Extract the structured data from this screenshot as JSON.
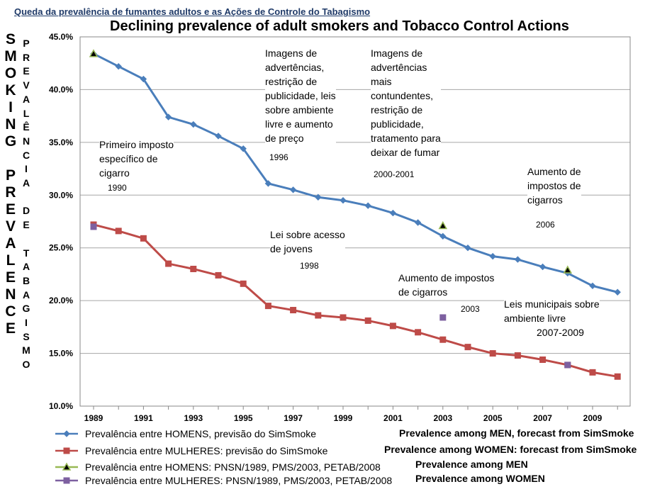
{
  "header": {
    "top_title": "Queda da prevalência de fumantes adultos e as Ações de Controle do Tabagismo",
    "main_title": "Declining prevalence of adult smokers and Tobacco Control Actions"
  },
  "side_labels": {
    "smoking_prevalence": [
      "S",
      "M",
      "O",
      "K",
      "I",
      "N",
      "G",
      "",
      "P",
      "R",
      "E",
      "V",
      "A",
      "L",
      "E",
      "N",
      "C",
      "E"
    ],
    "prevalencia_de_tabagismo": [
      "P",
      "R",
      "E",
      "V",
      "A",
      "L",
      "Ê",
      "N",
      "C",
      "I",
      "A",
      "",
      "D",
      "E",
      "",
      "T",
      "A",
      "B",
      "A",
      "G",
      "I",
      "S",
      "M",
      "O"
    ]
  },
  "chart_data": {
    "type": "line",
    "x_ticks": [
      "1989",
      "1991",
      "1993",
      "1995",
      "1997",
      "1999",
      "2001",
      "2003",
      "2005",
      "2007",
      "2009"
    ],
    "y_ticks": [
      "10.0%",
      "15.0%",
      "20.0%",
      "25.0%",
      "30.0%",
      "35.0%",
      "40.0%",
      "45.0%"
    ],
    "xlim": [
      1989,
      2010
    ],
    "ylim": [
      10,
      45
    ],
    "grid": true,
    "legend_position": "bottom",
    "series": [
      {
        "name": "Prevalência entre HOMENS, previsão do SimSmoke",
        "color": "#4a7ebb",
        "marker": "diamond",
        "x": [
          1989,
          1990,
          1991,
          1992,
          1993,
          1994,
          1995,
          1996,
          1997,
          1998,
          1999,
          2000,
          2001,
          2002,
          2003,
          2004,
          2005,
          2006,
          2007,
          2008,
          2009,
          2010
        ],
        "values": [
          43.4,
          42.2,
          41.0,
          37.4,
          36.7,
          35.6,
          34.4,
          31.1,
          30.5,
          29.8,
          29.5,
          29.0,
          28.3,
          27.4,
          26.1,
          25.0,
          24.2,
          23.9,
          23.2,
          22.6,
          21.4,
          20.8
        ]
      },
      {
        "name": "Prevalência entre MULHERES: previsão do SimSmoke",
        "color": "#be4b48",
        "marker": "square",
        "x": [
          1989,
          1990,
          1991,
          1992,
          1993,
          1994,
          1995,
          1996,
          1997,
          1998,
          1999,
          2000,
          2001,
          2002,
          2003,
          2004,
          2005,
          2006,
          2007,
          2008,
          2009,
          2010
        ],
        "values": [
          27.2,
          26.6,
          25.9,
          23.5,
          23.0,
          22.4,
          21.6,
          19.5,
          19.1,
          18.6,
          18.4,
          18.1,
          17.6,
          17.0,
          16.3,
          15.6,
          15.0,
          14.8,
          14.4,
          13.9,
          13.2,
          12.8
        ]
      },
      {
        "name": "Prevalência entre HOMENS: PNSN/1989, PMS/2003, PETAB/2008",
        "color": "#98b954",
        "marker": "triangle",
        "x": [
          1989,
          2003,
          2008
        ],
        "values": [
          43.4,
          27.1,
          22.9
        ]
      },
      {
        "name": "Prevalência entre MULHERES: PNSN/1989, PMS/2003, PETAB/2008",
        "color": "#7d60a0",
        "marker": "square",
        "x": [
          1989,
          2003,
          2008
        ],
        "values": [
          27.0,
          18.4,
          13.9
        ]
      }
    ],
    "legend_english": [
      "Prevalence among MEN, forecast from SimSmoke",
      "Prevalence among WOMEN: forecast from SimSmoke",
      "Prevalence among MEN",
      "Prevalence among WOMEN"
    ],
    "annotations": [
      {
        "text": "Primeiro imposto\nespecífico de\ncigarro",
        "year": "1990"
      },
      {
        "text": "Imagens de\nadvertências,\nrestrição de\npublicidade, leis\nsobre ambiente\nlivre e aumento\nde preço",
        "year": "1996"
      },
      {
        "text": "Imagens de\nadvertências\nmais\ncontundentes,\nrestrição de\npublicidade,\ntratamento para\ndeixar de fumar",
        "year": "2000-2001"
      },
      {
        "text": "Aumento de\nimpostos de\ncigarros",
        "year": "2006"
      },
      {
        "text": "Lei sobre acesso\nde jovens",
        "year": "1998"
      },
      {
        "text": "Aumento de impostos\nde cigarros",
        "year": "2003"
      },
      {
        "text": "Leis municipais sobre\nambiente livre",
        "year": "2007-2009"
      }
    ]
  }
}
